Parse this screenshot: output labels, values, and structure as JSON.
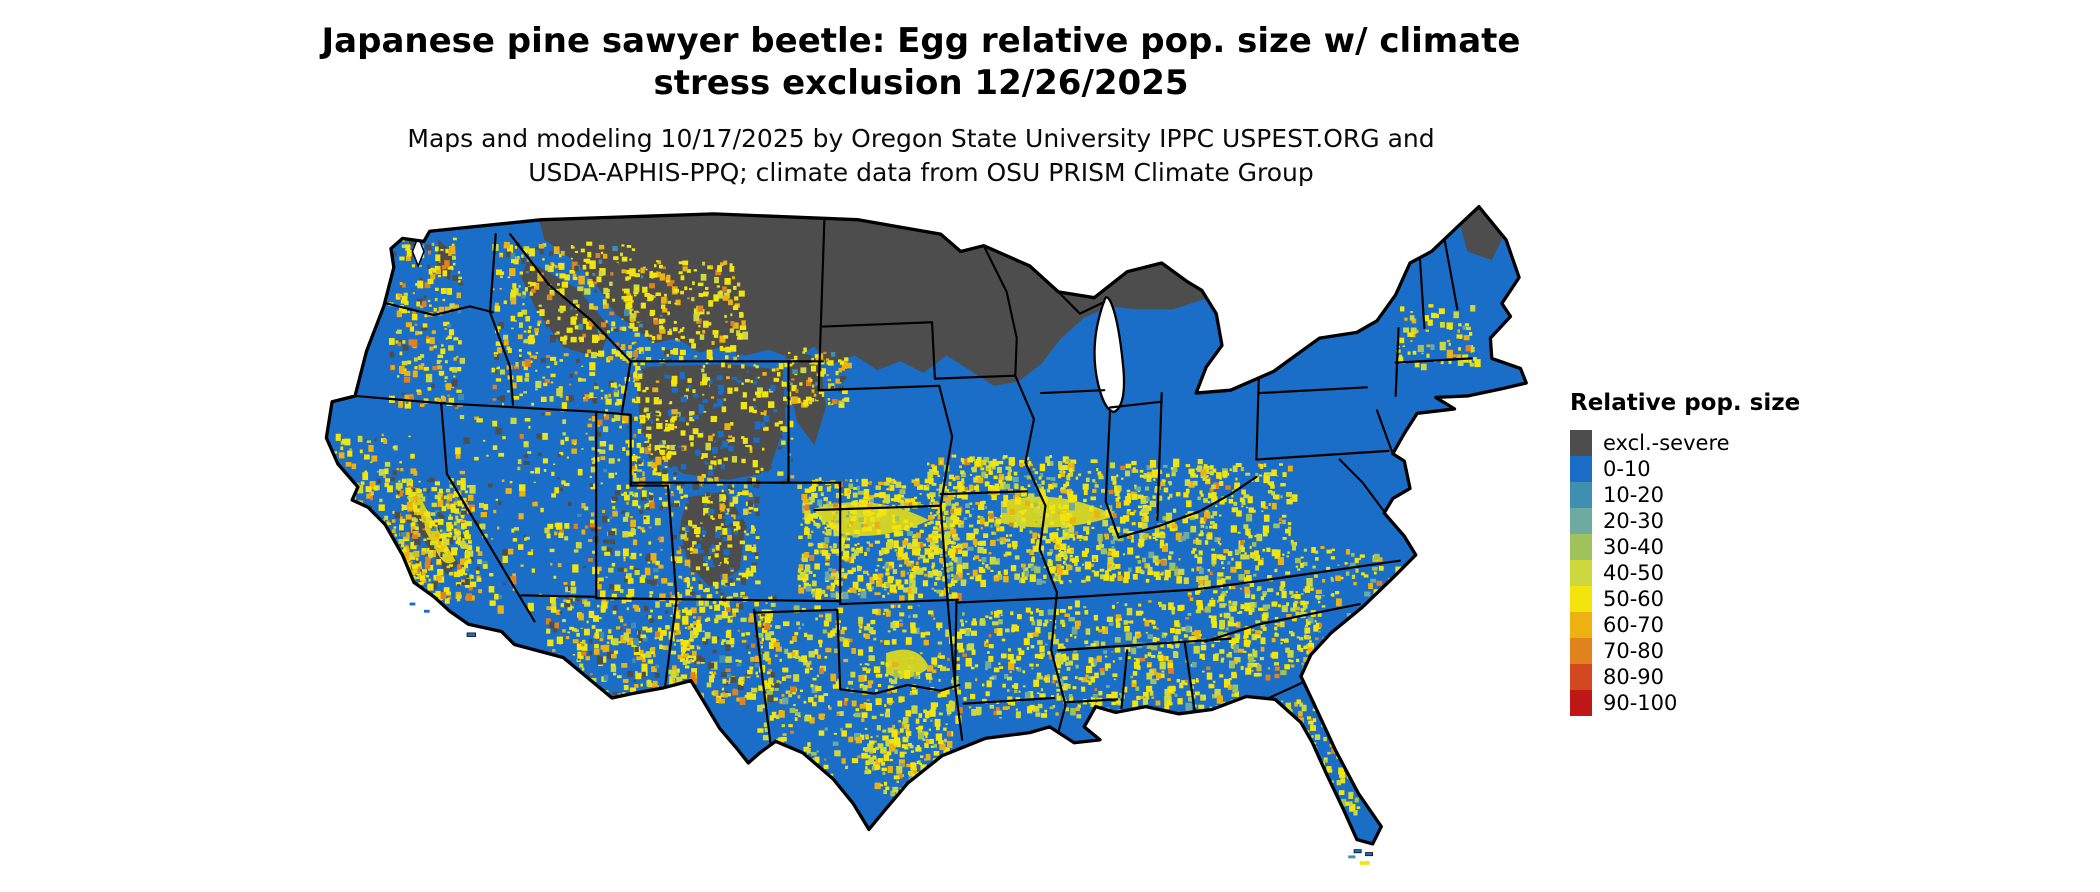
{
  "header": {
    "title_lines": [
      "Japanese pine sawyer beetle: Egg relative pop. size w/ climate",
      "stress exclusion 12/26/2025"
    ],
    "subtitle_lines": [
      "Maps and modeling 10/17/2025 by Oregon State University IPPC USPEST.ORG and",
      "USDA-APHIS-PPQ; climate data from OSU PRISM Climate Group"
    ]
  },
  "legend": {
    "title": "Relative pop. size",
    "items": [
      {
        "label": "excl.-severe",
        "color": "#4d4d4d"
      },
      {
        "label": "0-10",
        "color": "#1a6ec7"
      },
      {
        "label": "10-20",
        "color": "#3f8fb0"
      },
      {
        "label": "20-30",
        "color": "#6faaa0"
      },
      {
        "label": "30-40",
        "color": "#9fc25c"
      },
      {
        "label": "40-50",
        "color": "#cdd83f"
      },
      {
        "label": "50-60",
        "color": "#f2e40c"
      },
      {
        "label": "60-70",
        "color": "#edb211"
      },
      {
        "label": "70-80",
        "color": "#e2821d"
      },
      {
        "label": "80-90",
        "color": "#d2491f"
      },
      {
        "label": "90-100",
        "color": "#bf1616"
      }
    ]
  },
  "map": {
    "region": "Continental United States",
    "colors": {
      "water": "#ffffff",
      "border": "#000000"
    }
  }
}
